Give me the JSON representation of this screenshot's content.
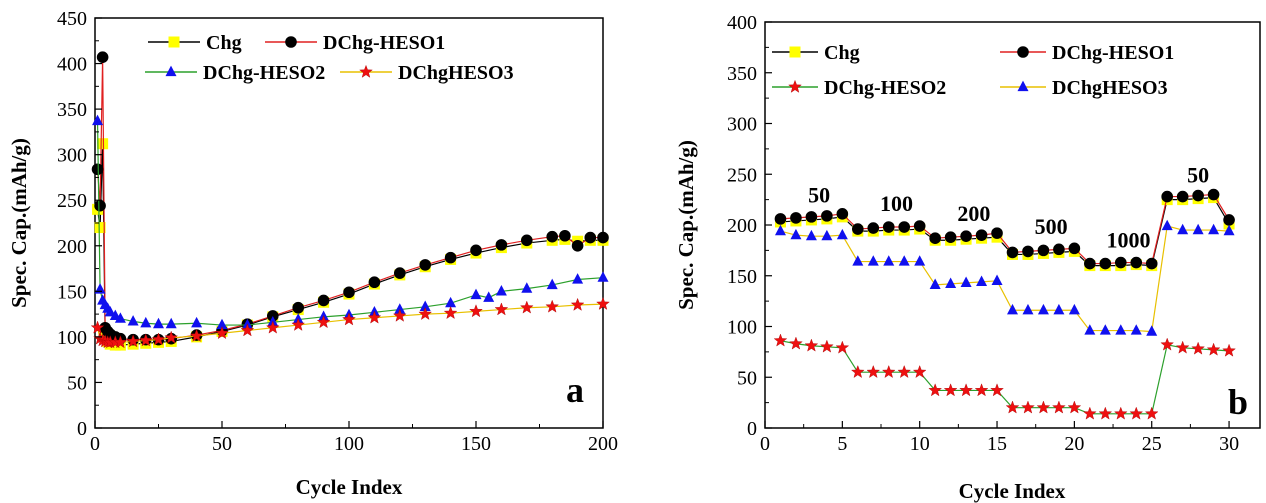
{
  "chart_data": [
    {
      "type": "line",
      "panel_label": "a",
      "xlabel": "Cycle Index",
      "ylabel": "Spec. Cap.(mAh/g)",
      "xlim": [
        0,
        200
      ],
      "ylim": [
        0,
        450
      ],
      "xticks": [
        0,
        50,
        100,
        150,
        200
      ],
      "yticks": [
        0,
        50,
        100,
        150,
        200,
        250,
        300,
        350,
        400,
        450
      ],
      "legend_position": "top",
      "series": [
        {
          "name": "Chg",
          "color": "#000000",
          "marker": "square",
          "marker_color": "#ffff00",
          "x": [
            1,
            2,
            3,
            4,
            5,
            6,
            8,
            10,
            15,
            20,
            25,
            30,
            40,
            50,
            60,
            70,
            80,
            90,
            100,
            110,
            120,
            130,
            140,
            150,
            160,
            170,
            180,
            185,
            190,
            195,
            200
          ],
          "y": [
            240,
            220,
            312,
            100,
            95,
            92,
            91,
            91,
            92,
            93,
            94,
            95,
            100,
            106,
            113,
            122,
            130,
            138,
            147,
            158,
            168,
            177,
            185,
            192,
            198,
            203,
            206,
            207,
            205,
            206,
            206
          ]
        },
        {
          "name": "DChg-HESO1",
          "color": "#e02020",
          "marker": "circle",
          "marker_color": "#000000",
          "x": [
            1,
            2,
            3,
            4,
            5,
            6,
            8,
            10,
            15,
            20,
            25,
            30,
            40,
            50,
            60,
            70,
            80,
            90,
            100,
            110,
            120,
            130,
            140,
            150,
            160,
            170,
            180,
            185,
            190,
            195,
            200
          ],
          "y": [
            284,
            244,
            407,
            110,
            106,
            103,
            100,
            98,
            97,
            97,
            97,
            98,
            102,
            107,
            114,
            123,
            132,
            140,
            149,
            160,
            170,
            179,
            187,
            195,
            201,
            206,
            210,
            211,
            200,
            209,
            209
          ]
        },
        {
          "name": "DChg-HESO2",
          "color": "#2ca02c",
          "marker": "triangle",
          "marker_color": "#1010ee",
          "x": [
            1,
            2,
            3,
            4,
            5,
            6,
            8,
            10,
            15,
            20,
            25,
            30,
            40,
            50,
            60,
            70,
            80,
            90,
            100,
            110,
            120,
            130,
            140,
            150,
            155,
            160,
            170,
            180,
            190,
            200
          ],
          "y": [
            337,
            152,
            140,
            135,
            131,
            127,
            123,
            120,
            117,
            115,
            114,
            114,
            115,
            113,
            113,
            116,
            119,
            122,
            124,
            127,
            130,
            133,
            137,
            146,
            143,
            150,
            153,
            157,
            163,
            165
          ]
        },
        {
          "name": "DChgHESO3",
          "color": "#e8c000",
          "marker": "star",
          "marker_color": "#ee1010",
          "x": [
            1,
            2,
            3,
            4,
            5,
            6,
            8,
            10,
            15,
            20,
            25,
            30,
            40,
            50,
            60,
            70,
            80,
            90,
            100,
            110,
            120,
            130,
            140,
            150,
            160,
            170,
            180,
            190,
            200
          ],
          "y": [
            110,
            98,
            96,
            95,
            94,
            94,
            94,
            94,
            95,
            96,
            97,
            99,
            101,
            104,
            107,
            110,
            113,
            116,
            119,
            121,
            123,
            125,
            126,
            128,
            130,
            132,
            133,
            135,
            136
          ]
        }
      ]
    },
    {
      "type": "line",
      "panel_label": "b",
      "xlabel": "Cycle Index",
      "ylabel": "Spec. Cap.(mAh/g)",
      "xlim": [
        0,
        32
      ],
      "ylim": [
        0,
        400
      ],
      "xticks": [
        0,
        5,
        10,
        15,
        20,
        25,
        30
      ],
      "yticks": [
        0,
        50,
        100,
        150,
        200,
        250,
        300,
        350,
        400
      ],
      "legend_position": "top",
      "rate_labels": [
        {
          "text": "50",
          "x": 3.5,
          "y": 222
        },
        {
          "text": "100",
          "x": 8.5,
          "y": 214
        },
        {
          "text": "200",
          "x": 13.5,
          "y": 204
        },
        {
          "text": "500",
          "x": 18.5,
          "y": 191
        },
        {
          "text": "1000",
          "x": 23.5,
          "y": 178
        },
        {
          "text": "50",
          "x": 28,
          "y": 242
        }
      ],
      "series": [
        {
          "name": "Chg",
          "color": "#000000",
          "marker": "square",
          "marker_color": "#ffff00",
          "x": [
            1,
            2,
            3,
            4,
            5,
            6,
            7,
            8,
            9,
            10,
            11,
            12,
            13,
            14,
            15,
            16,
            17,
            18,
            19,
            20,
            21,
            22,
            23,
            24,
            25,
            26,
            27,
            28,
            29,
            30
          ],
          "y": [
            203,
            204,
            205,
            206,
            208,
            194,
            194,
            195,
            195,
            196,
            185,
            185,
            186,
            187,
            188,
            171,
            171,
            172,
            173,
            174,
            160,
            160,
            160,
            161,
            160,
            225,
            225,
            226,
            227,
            201
          ]
        },
        {
          "name": "DChg-HESO1",
          "color": "#e02020",
          "marker": "circle",
          "marker_color": "#000000",
          "x": [
            1,
            2,
            3,
            4,
            5,
            6,
            7,
            8,
            9,
            10,
            11,
            12,
            13,
            14,
            15,
            16,
            17,
            18,
            19,
            20,
            21,
            22,
            23,
            24,
            25,
            26,
            27,
            28,
            29,
            30
          ],
          "y": [
            206,
            207,
            208,
            209,
            211,
            196,
            197,
            198,
            198,
            199,
            187,
            188,
            189,
            190,
            192,
            173,
            174,
            175,
            176,
            177,
            162,
            162,
            163,
            163,
            162,
            228,
            228,
            229,
            230,
            205
          ]
        },
        {
          "name": "DChg-HESO2",
          "color": "#2ca02c",
          "marker": "star",
          "marker_color": "#ee1010",
          "x": [
            1,
            2,
            3,
            4,
            5,
            6,
            7,
            8,
            9,
            10,
            11,
            12,
            13,
            14,
            15,
            16,
            17,
            18,
            19,
            20,
            21,
            22,
            23,
            24,
            25,
            26,
            27,
            28,
            29,
            30
          ],
          "y": [
            86,
            83,
            81,
            80,
            79,
            55,
            55,
            55,
            55,
            55,
            37,
            37,
            37,
            37,
            37,
            20,
            20,
            20,
            20,
            20,
            14,
            14,
            14,
            14,
            14,
            82,
            79,
            78,
            77,
            76
          ]
        },
        {
          "name": "DChgHESO3",
          "color": "#e8c000",
          "marker": "triangle",
          "marker_color": "#1010ee",
          "x": [
            1,
            2,
            3,
            4,
            5,
            6,
            7,
            8,
            9,
            10,
            11,
            12,
            13,
            14,
            15,
            16,
            17,
            18,
            19,
            20,
            21,
            22,
            23,
            24,
            25,
            26,
            27,
            28,
            29,
            30
          ],
          "y": [
            194,
            190,
            189,
            189,
            190,
            164,
            164,
            164,
            164,
            164,
            141,
            142,
            143,
            144,
            145,
            116,
            116,
            116,
            116,
            116,
            96,
            96,
            96,
            96,
            95,
            199,
            195,
            195,
            195,
            194
          ]
        }
      ]
    }
  ]
}
